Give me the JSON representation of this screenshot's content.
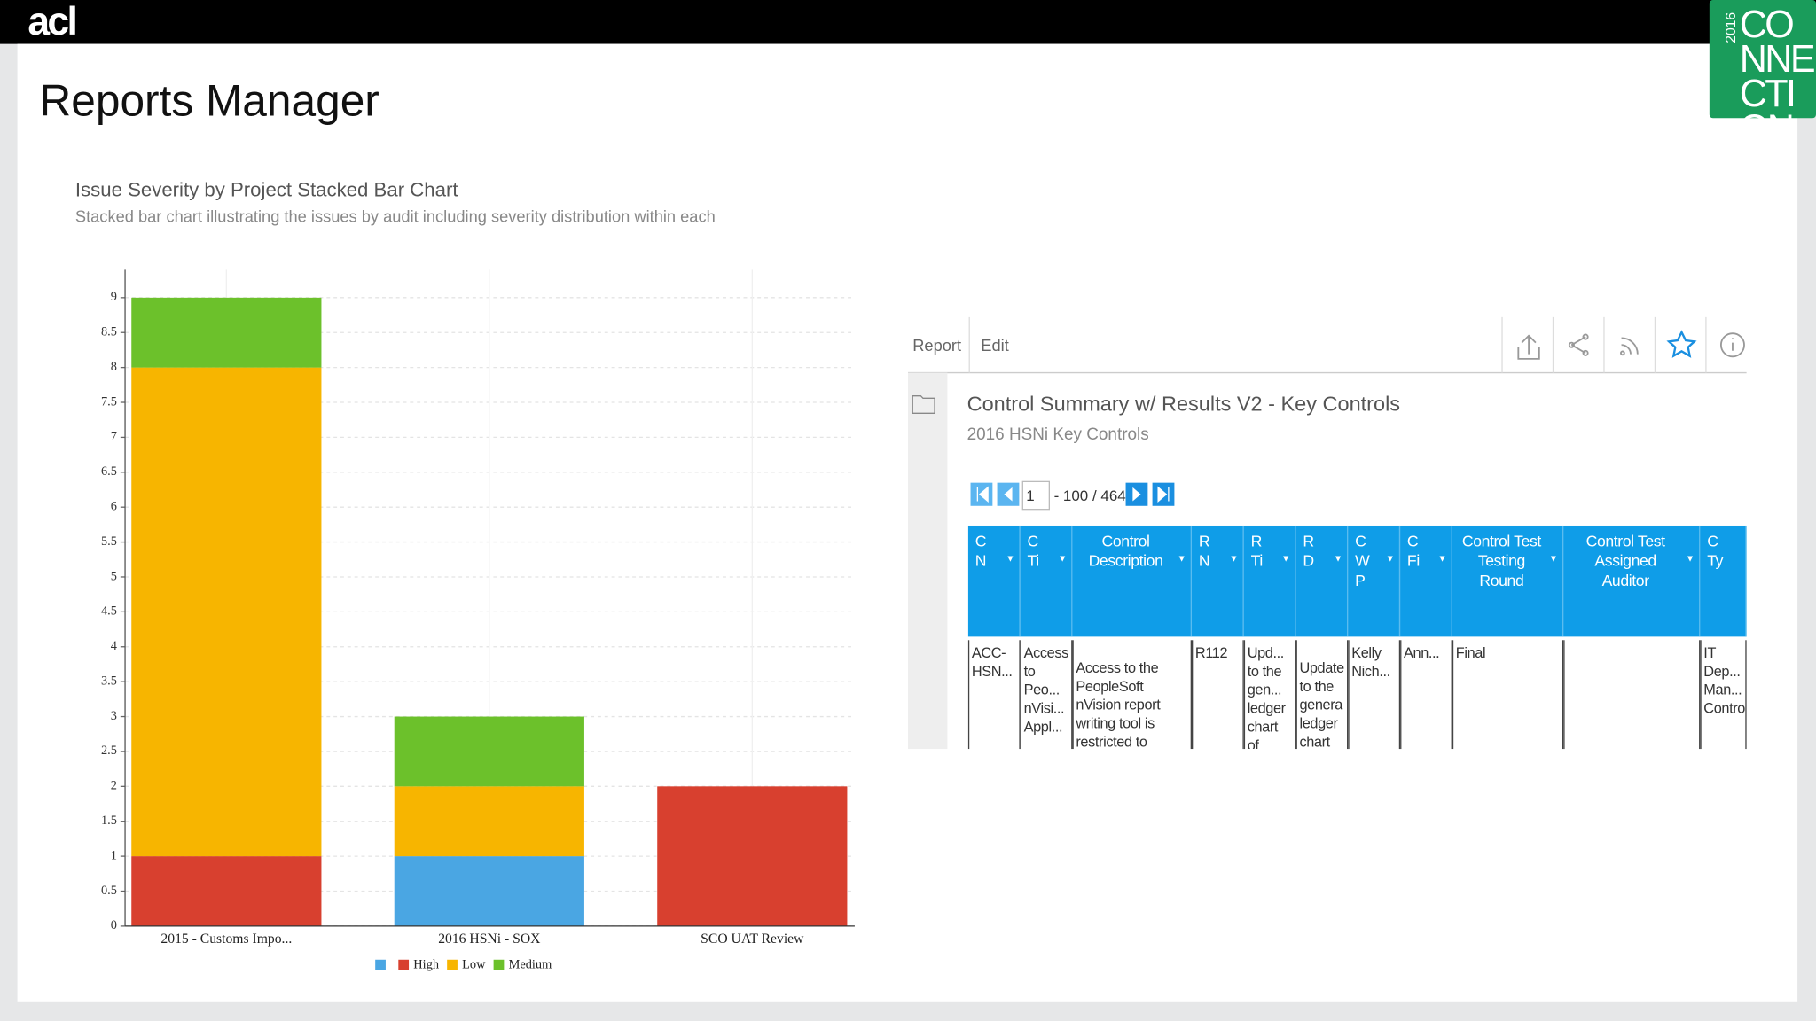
{
  "header": {
    "logo": "acl",
    "title": "Reports Manager",
    "badge_year": "2016",
    "badge_text": "CONNECTIONS"
  },
  "chart_data": {
    "type": "bar",
    "stacked": true,
    "title": "Issue Severity by Project Stacked Bar Chart",
    "subtitle": "Stacked bar chart illustrating the issues by audit including severity distribution within each",
    "categories": [
      "2015 - Customs Impo...",
      "2016 HSNi - SOX",
      "SCO UAT Review"
    ],
    "series": [
      {
        "name": null,
        "color": "#4aa6e3",
        "values": [
          0,
          1,
          0
        ]
      },
      {
        "name": "High",
        "color": "#d8402f",
        "values": [
          1,
          0,
          2
        ]
      },
      {
        "name": "Low",
        "color": "#f7b500",
        "values": [
          7,
          1,
          0
        ]
      },
      {
        "name": "Medium",
        "color": "#6cc12b",
        "values": [
          1,
          1,
          0
        ]
      }
    ],
    "ylim": [
      0,
      9.4
    ],
    "yticks": [
      0,
      0.5,
      1,
      1.5,
      2,
      2.5,
      3,
      3.5,
      4,
      4.5,
      5,
      5.5,
      6,
      6.5,
      7,
      7.5,
      8,
      8.5,
      9
    ],
    "grid": true,
    "legend": "bottom"
  },
  "report": {
    "tabs": [
      "Report",
      "Edit"
    ],
    "title": "Control Summary w/ Results V2 - Key Controls",
    "subtitle": "2016 HSNi Key Controls",
    "pager": {
      "page": "1",
      "range": "- 100 / 464"
    },
    "table": {
      "columns": [
        "C N",
        "C Ti",
        "Control Description",
        "R N",
        "R Ti",
        "R D",
        "C W P",
        "C Fi",
        "Control Test Testing Round",
        "Control Test Assigned Auditor",
        "C Ty"
      ],
      "rows": [
        [
          "ACC-HSN...",
          "Access to Peo... nVisi... Appl...",
          "Access to the PeopleSoft nVision report writing tool is restricted to",
          "R112",
          "Upd... to the gen... ledger chart of acco",
          "Update to the genera ledger chart of",
          "Kelly Nich...",
          "Ann...",
          "Final",
          null,
          "IT Dep... Man... Contro"
        ]
      ]
    }
  }
}
